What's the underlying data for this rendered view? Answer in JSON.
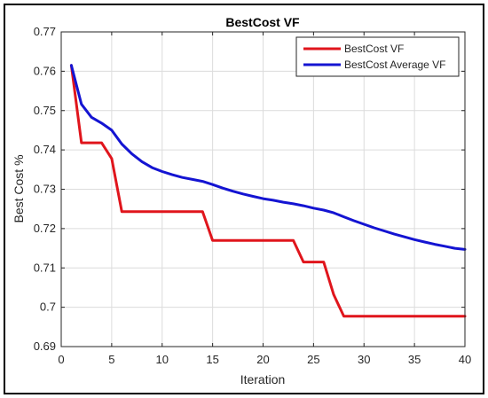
{
  "chart_data": {
    "type": "line",
    "title": "BestCost VF",
    "xlabel": "Iteration",
    "ylabel": "Best Cost %",
    "xlim": [
      0,
      40
    ],
    "ylim": [
      0.69,
      0.77
    ],
    "xticks": [
      0,
      5,
      10,
      15,
      20,
      25,
      30,
      35,
      40
    ],
    "xtick_labels": [
      "0",
      "5",
      "10",
      "15",
      "20",
      "25",
      "30",
      "35",
      "40"
    ],
    "yticks": [
      0.69,
      0.7,
      0.71,
      0.72,
      0.73,
      0.74,
      0.75,
      0.76,
      0.77
    ],
    "ytick_labels": [
      "0.69",
      "0.7",
      "0.71",
      "0.72",
      "0.73",
      "0.74",
      "0.75",
      "0.76",
      "0.77"
    ],
    "grid": true,
    "legend_position": "top-right",
    "series": [
      {
        "name": "BestCost VF",
        "color": "#e0151c",
        "x": [
          1,
          2,
          3,
          4,
          5,
          6,
          7,
          8,
          9,
          10,
          11,
          12,
          13,
          14,
          15,
          16,
          17,
          18,
          19,
          20,
          21,
          22,
          23,
          24,
          25,
          26,
          27,
          28,
          29,
          30,
          31,
          32,
          33,
          34,
          35,
          36,
          37,
          38,
          39,
          40
        ],
        "y": [
          0.7615,
          0.7418,
          0.7418,
          0.7418,
          0.7378,
          0.7243,
          0.7243,
          0.7243,
          0.7243,
          0.7243,
          0.7243,
          0.7243,
          0.7243,
          0.7243,
          0.717,
          0.717,
          0.717,
          0.717,
          0.717,
          0.717,
          0.717,
          0.717,
          0.717,
          0.7115,
          0.7115,
          0.7115,
          0.7032,
          0.6977,
          0.6977,
          0.6977,
          0.6977,
          0.6977,
          0.6977,
          0.6977,
          0.6977,
          0.6977,
          0.6977,
          0.6977,
          0.6977,
          0.6977
        ]
      },
      {
        "name": "BestCost Average VF",
        "color": "#1414d2",
        "x": [
          1,
          2,
          3,
          4,
          5,
          6,
          7,
          8,
          9,
          10,
          11,
          12,
          13,
          14,
          15,
          16,
          17,
          18,
          19,
          20,
          21,
          22,
          23,
          24,
          25,
          26,
          27,
          28,
          29,
          30,
          31,
          32,
          33,
          34,
          35,
          36,
          37,
          38,
          39,
          40
        ],
        "y": [
          0.7615,
          0.7516,
          0.7483,
          0.7468,
          0.745,
          0.7415,
          0.739,
          0.737,
          0.7355,
          0.7345,
          0.7337,
          0.733,
          0.7325,
          0.732,
          0.7312,
          0.7303,
          0.7295,
          0.7288,
          0.7282,
          0.7276,
          0.7272,
          0.7267,
          0.7263,
          0.7258,
          0.7252,
          0.7247,
          0.724,
          0.723,
          0.722,
          0.7211,
          0.7202,
          0.7194,
          0.7186,
          0.7179,
          0.7172,
          0.7166,
          0.716,
          0.7155,
          0.715,
          0.7147
        ]
      }
    ]
  }
}
